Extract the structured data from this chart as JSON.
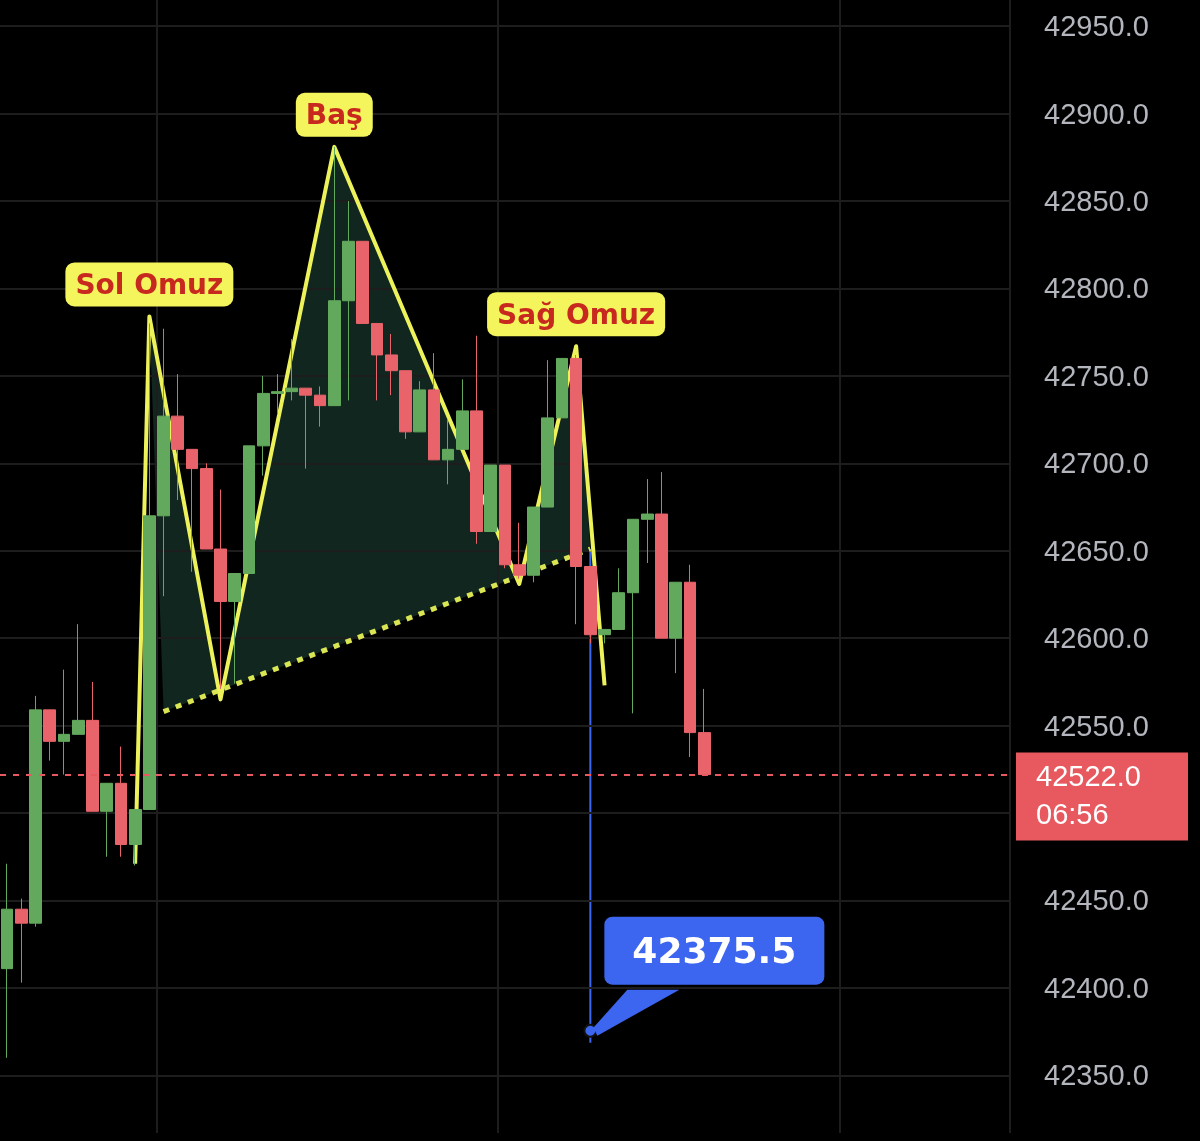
{
  "chart_data": {
    "type": "candlestick",
    "categories": [
      null,
      null,
      null,
      null,
      null,
      null,
      null,
      null,
      null,
      null,
      null,
      null,
      null,
      null,
      null,
      null,
      null,
      null,
      null,
      null,
      null,
      null,
      null,
      null,
      null,
      null,
      null,
      null,
      null,
      null,
      null,
      null,
      null,
      null,
      null,
      null,
      null,
      null,
      null,
      null,
      null,
      null,
      null,
      null,
      null,
      null,
      null,
      null,
      null,
      null,
      null,
      null,
      null,
      null,
      null,
      null,
      null,
      null,
      null,
      null,
      null,
      null,
      null,
      null,
      null,
      null,
      null,
      null,
      null,
      null,
      null
    ],
    "ohlc": [
      [
        42411,
        42471,
        42360,
        42445
      ],
      [
        42445,
        42451,
        42403,
        42437
      ],
      [
        42437,
        42567,
        42435,
        42559
      ],
      [
        42559,
        42559,
        42530,
        42541
      ],
      [
        42541,
        42582,
        42522,
        42545
      ],
      [
        42545,
        42608,
        42545,
        42553
      ],
      [
        42553,
        42575,
        42501,
        42501
      ],
      [
        42501,
        42517,
        42475,
        42517
      ],
      [
        42517,
        42538,
        42475,
        42482
      ],
      [
        42482,
        42502,
        42470,
        42502
      ],
      [
        42502,
        42780,
        42502,
        42670
      ],
      [
        42670,
        42777,
        42624,
        42727
      ],
      [
        42727,
        42751,
        42679,
        42708
      ],
      [
        42708,
        42708,
        42638,
        42697
      ],
      [
        42697,
        42700,
        42651,
        42651
      ],
      [
        42651,
        42685,
        42571,
        42621
      ],
      [
        42621,
        42637,
        42574,
        42637
      ],
      [
        42637,
        42710,
        42637,
        42710
      ],
      [
        42710,
        42750,
        42693,
        42740
      ],
      [
        42740,
        42751,
        42728,
        42741
      ],
      [
        42741,
        42771,
        42736,
        42743
      ],
      [
        42743,
        42743,
        42697,
        42739
      ],
      [
        42739,
        42744,
        42721,
        42733
      ],
      [
        42733,
        42881,
        42733,
        42793
      ],
      [
        42793,
        42850,
        42736,
        42827
      ],
      [
        42827,
        42827,
        42780,
        42780
      ],
      [
        42780,
        42780,
        42736,
        42762
      ],
      [
        42762,
        42774,
        42739,
        42753
      ],
      [
        42753,
        42753,
        42714,
        42718
      ],
      [
        42718,
        42747,
        42718,
        42742
      ],
      [
        42742,
        42763,
        42702,
        42702
      ],
      [
        42702,
        42725,
        42688,
        42708
      ],
      [
        42708,
        42748,
        42708,
        42730
      ],
      [
        42730,
        42773,
        42654,
        42661
      ],
      [
        42661,
        42699,
        42661,
        42699
      ],
      [
        42699,
        42699,
        42640,
        42642
      ],
      [
        42642,
        42666,
        42634,
        42636
      ],
      [
        42636,
        42675,
        42632,
        42675
      ],
      [
        42675,
        42759,
        42675,
        42726
      ],
      [
        42726,
        42760,
        42726,
        42760
      ],
      [
        42760,
        42762,
        42608,
        42641
      ],
      [
        42641,
        42641,
        42597,
        42602
      ],
      [
        42602,
        42605,
        42597,
        42605
      ],
      [
        42605,
        42640,
        42605,
        42626
      ],
      [
        42626,
        42668,
        42557,
        42668
      ],
      [
        42668,
        42691,
        42643,
        42671
      ],
      [
        42671,
        42695,
        42600,
        42600
      ],
      [
        42600,
        42632,
        42580,
        42632
      ],
      [
        42632,
        42642,
        42532,
        42546
      ],
      [
        42546,
        42571,
        42522,
        42522
      ],
      null,
      null,
      null,
      null,
      null,
      null,
      null,
      null,
      null,
      null,
      null,
      null,
      null,
      null,
      null,
      null,
      null,
      null,
      null,
      null,
      null
    ],
    "series": [
      {
        "type": "line",
        "color": "#eef25a",
        "values": [
          null,
          null,
          null,
          null,
          null,
          null,
          null,
          null,
          null,
          42471,
          42784,
          null,
          null,
          null,
          null,
          42565,
          null,
          null,
          null,
          null,
          null,
          null,
          null,
          42881,
          null,
          null,
          null,
          null,
          null,
          null,
          null,
          null,
          null,
          null,
          null,
          null,
          42631,
          null,
          null,
          null,
          42767,
          null,
          42573,
          null,
          null,
          null,
          null,
          null,
          null,
          null,
          null,
          null,
          null,
          null,
          null,
          null,
          null,
          null,
          null,
          null,
          null,
          null,
          null,
          null,
          null,
          null,
          null,
          null,
          null,
          null,
          null
        ]
      },
      {
        "type": "scatter",
        "color": "#3d66f0",
        "marker": "circle",
        "values": [
          null,
          null,
          null,
          null,
          null,
          null,
          null,
          null,
          null,
          null,
          null,
          null,
          null,
          null,
          null,
          null,
          null,
          null,
          null,
          null,
          null,
          null,
          null,
          null,
          null,
          null,
          null,
          null,
          null,
          null,
          null,
          null,
          null,
          null,
          null,
          null,
          null,
          null,
          null,
          null,
          null,
          42375.5,
          null,
          null,
          null,
          null,
          null,
          null,
          null,
          null,
          null,
          null,
          null,
          null,
          null,
          null,
          null,
          null,
          null,
          null,
          null,
          null,
          null,
          null,
          null,
          null,
          null,
          null,
          null,
          null,
          null
        ],
        "value_labels": [
          null,
          null,
          null,
          null,
          null,
          null,
          null,
          null,
          null,
          null,
          null,
          null,
          null,
          null,
          null,
          null,
          null,
          null,
          null,
          null,
          null,
          null,
          null,
          null,
          null,
          null,
          null,
          null,
          null,
          null,
          null,
          null,
          null,
          null,
          null,
          null,
          null,
          null,
          null,
          null,
          null,
          "42375.5",
          null,
          null,
          null,
          null,
          null,
          null,
          null,
          null,
          null,
          null,
          null,
          null,
          null,
          null,
          null,
          null,
          null,
          null,
          null,
          null,
          null,
          null,
          null,
          null,
          null,
          null,
          null,
          null,
          null
        ]
      },
      {
        "type": "line",
        "color": "#d9e552",
        "line_style": "dotted",
        "values": [
          null,
          null,
          null,
          null,
          null,
          null,
          null,
          null,
          null,
          null,
          null,
          42558,
          null,
          null,
          null,
          null,
          null,
          null,
          null,
          null,
          null,
          null,
          null,
          null,
          null,
          null,
          null,
          null,
          null,
          null,
          null,
          null,
          null,
          null,
          null,
          null,
          null,
          null,
          null,
          null,
          null,
          42651,
          null,
          null,
          null,
          null,
          null,
          null,
          null,
          null,
          null,
          null,
          null,
          null,
          null,
          null,
          null,
          null,
          null,
          null,
          null,
          null,
          null,
          null,
          null,
          null,
          null,
          null,
          null,
          null,
          null
        ]
      }
    ],
    "ylim": [
      42317,
      42965
    ],
    "yticks": [
      {
        "value": 42350,
        "label": "42350.0"
      },
      {
        "value": 42400,
        "label": "42400.0"
      },
      {
        "value": 42450,
        "label": "42450.0"
      },
      {
        "value": 42500,
        "label": null
      },
      {
        "value": 42550,
        "label": "42550.0"
      },
      {
        "value": 42600,
        "label": "42600.0"
      },
      {
        "value": 42650,
        "label": "42650.0"
      },
      {
        "value": 42700,
        "label": "42700.0"
      },
      {
        "value": 42750,
        "label": "42750.0"
      },
      {
        "value": 42800,
        "label": "42800.0"
      },
      {
        "value": 42850,
        "label": "42850.0"
      },
      {
        "value": 42900,
        "label": "42900.0"
      },
      {
        "value": 42950,
        "label": "42950.0"
      }
    ],
    "ref_lines": [
      {
        "axis": "y",
        "value": 42522,
        "label": "42522.0",
        "color": "#e8595f",
        "line_style": "dotted"
      }
    ],
    "annotations": [
      {
        "text": "Sol Omuz",
        "y": 42784
      },
      {
        "text": "Baş",
        "y": 42881
      },
      {
        "text": "Sağ Omuz",
        "y": 42767
      },
      "06:56"
    ],
    "grid": true
  }
}
